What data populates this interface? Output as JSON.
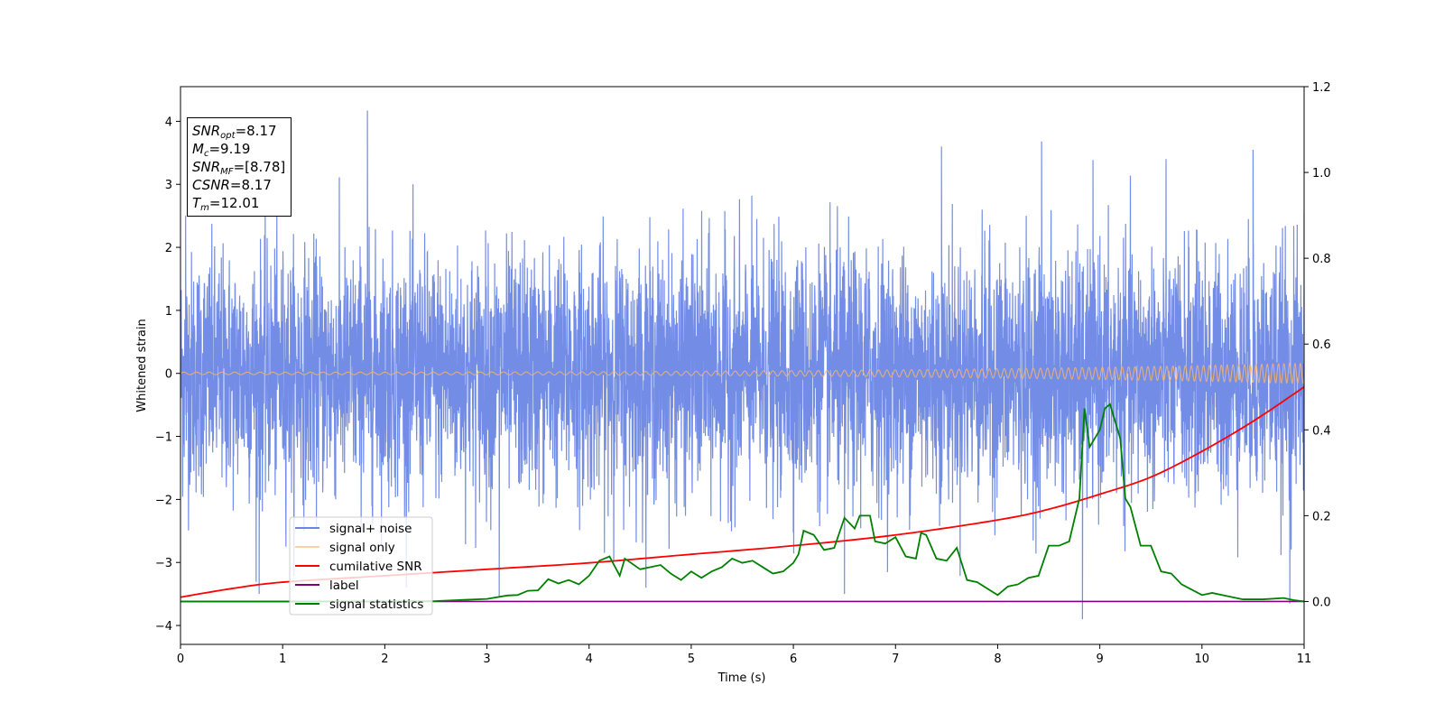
{
  "chart_data": {
    "type": "line",
    "xlabel": "Time (s)",
    "ylabel": "Whitened strain",
    "xlim": [
      0,
      11
    ],
    "ylim": [
      -4.3,
      4.55
    ],
    "y2lim": [
      -0.1,
      1.2
    ],
    "xticks": [
      "0",
      "1",
      "2",
      "3",
      "4",
      "5",
      "6",
      "7",
      "8",
      "9",
      "10",
      "11"
    ],
    "yticks": [
      "4",
      "3",
      "2",
      "1",
      "0",
      "−1",
      "−2",
      "−3",
      "−4"
    ],
    "y2ticks": [
      "1.2",
      "1.0",
      "0.8",
      "0.6",
      "0.4",
      "0.2",
      "0.0"
    ],
    "legend_position": "lower-left",
    "series": [
      {
        "name": "signal+ noise",
        "axis": "left",
        "color": "#6b87e6",
        "note": "whitened noise, std ~1, range about -3.9 to 4.2",
        "spikes": [
          [
            1.83,
            4.17
          ],
          [
            0.77,
            -3.5
          ],
          [
            8.83,
            -3.9
          ],
          [
            3.12,
            -3.55
          ],
          [
            6.5,
            -3.5
          ],
          [
            10.86,
            -3.65
          ],
          [
            10.5,
            3.55
          ],
          [
            8.43,
            3.68
          ],
          [
            7.45,
            3.6
          ],
          [
            0.05,
            2.5
          ],
          [
            11.0,
            2.55
          ]
        ]
      },
      {
        "name": "signal only",
        "axis": "left",
        "color": "#f5b46e",
        "amplitude_start": 0.02,
        "amplitude_end": 0.16
      },
      {
        "name": "cumilative SNR",
        "axis": "right",
        "color": "#ff0000",
        "points": [
          [
            0,
            0.01
          ],
          [
            0.5,
            0.03
          ],
          [
            1,
            0.045
          ],
          [
            2,
            0.06
          ],
          [
            3,
            0.075
          ],
          [
            4,
            0.09
          ],
          [
            5,
            0.11
          ],
          [
            6,
            0.13
          ],
          [
            7,
            0.155
          ],
          [
            8,
            0.19
          ],
          [
            8.5,
            0.215
          ],
          [
            9,
            0.25
          ],
          [
            9.5,
            0.29
          ],
          [
            10,
            0.35
          ],
          [
            10.5,
            0.42
          ],
          [
            11,
            0.5
          ]
        ]
      },
      {
        "name": "label",
        "axis": "right",
        "color": "#800080",
        "points": [
          [
            0,
            0.0
          ],
          [
            11,
            0.0
          ]
        ]
      },
      {
        "name": "signal statistics",
        "axis": "right",
        "color": "#008000",
        "points": [
          [
            0,
            0.0
          ],
          [
            2,
            0.0
          ],
          [
            2.5,
            0.001
          ],
          [
            2.8,
            0.004
          ],
          [
            3.0,
            0.006
          ],
          [
            3.2,
            0.014
          ],
          [
            3.3,
            0.015
          ],
          [
            3.4,
            0.025
          ],
          [
            3.5,
            0.026
          ],
          [
            3.6,
            0.052
          ],
          [
            3.7,
            0.042
          ],
          [
            3.8,
            0.05
          ],
          [
            3.9,
            0.04
          ],
          [
            4.0,
            0.06
          ],
          [
            4.1,
            0.095
          ],
          [
            4.2,
            0.105
          ],
          [
            4.3,
            0.06
          ],
          [
            4.35,
            0.1
          ],
          [
            4.5,
            0.075
          ],
          [
            4.7,
            0.085
          ],
          [
            4.8,
            0.065
          ],
          [
            4.9,
            0.05
          ],
          [
            5.0,
            0.07
          ],
          [
            5.1,
            0.055
          ],
          [
            5.2,
            0.07
          ],
          [
            5.3,
            0.08
          ],
          [
            5.4,
            0.1
          ],
          [
            5.5,
            0.09
          ],
          [
            5.6,
            0.095
          ],
          [
            5.7,
            0.08
          ],
          [
            5.8,
            0.065
          ],
          [
            5.9,
            0.07
          ],
          [
            6.0,
            0.09
          ],
          [
            6.05,
            0.11
          ],
          [
            6.1,
            0.165
          ],
          [
            6.2,
            0.155
          ],
          [
            6.3,
            0.12
          ],
          [
            6.4,
            0.125
          ],
          [
            6.5,
            0.195
          ],
          [
            6.6,
            0.17
          ],
          [
            6.65,
            0.2
          ],
          [
            6.75,
            0.2
          ],
          [
            6.8,
            0.14
          ],
          [
            6.9,
            0.135
          ],
          [
            7.0,
            0.15
          ],
          [
            7.1,
            0.105
          ],
          [
            7.2,
            0.1
          ],
          [
            7.25,
            0.16
          ],
          [
            7.3,
            0.155
          ],
          [
            7.4,
            0.1
          ],
          [
            7.5,
            0.095
          ],
          [
            7.6,
            0.125
          ],
          [
            7.7,
            0.05
          ],
          [
            7.8,
            0.045
          ],
          [
            8.0,
            0.015
          ],
          [
            8.1,
            0.035
          ],
          [
            8.2,
            0.04
          ],
          [
            8.3,
            0.055
          ],
          [
            8.4,
            0.06
          ],
          [
            8.5,
            0.13
          ],
          [
            8.6,
            0.13
          ],
          [
            8.7,
            0.14
          ],
          [
            8.8,
            0.24
          ],
          [
            8.85,
            0.45
          ],
          [
            8.9,
            0.36
          ],
          [
            9.0,
            0.4
          ],
          [
            9.05,
            0.45
          ],
          [
            9.1,
            0.46
          ],
          [
            9.2,
            0.38
          ],
          [
            9.25,
            0.24
          ],
          [
            9.3,
            0.22
          ],
          [
            9.4,
            0.13
          ],
          [
            9.5,
            0.13
          ],
          [
            9.6,
            0.07
          ],
          [
            9.7,
            0.065
          ],
          [
            9.8,
            0.04
          ],
          [
            10.0,
            0.015
          ],
          [
            10.1,
            0.02
          ],
          [
            10.2,
            0.015
          ],
          [
            10.4,
            0.005
          ],
          [
            10.6,
            0.005
          ],
          [
            10.8,
            0.008
          ],
          [
            10.9,
            0.003
          ],
          [
            11.0,
            0.0
          ]
        ]
      }
    ]
  },
  "info_box": {
    "snr_opt": {
      "symbol": "SNR",
      "sub": "opt",
      "value": "=8.17"
    },
    "mc": {
      "symbol": "M",
      "sub": "c",
      "value": "=9.19"
    },
    "snr_mf": {
      "symbol": "SNR",
      "sub": "MF",
      "value": "=[8.78]"
    },
    "csnr": {
      "symbol": "CSNR",
      "value": "=8.17"
    },
    "tm": {
      "symbol": "T",
      "sub": "m",
      "value": "=12.01"
    }
  }
}
